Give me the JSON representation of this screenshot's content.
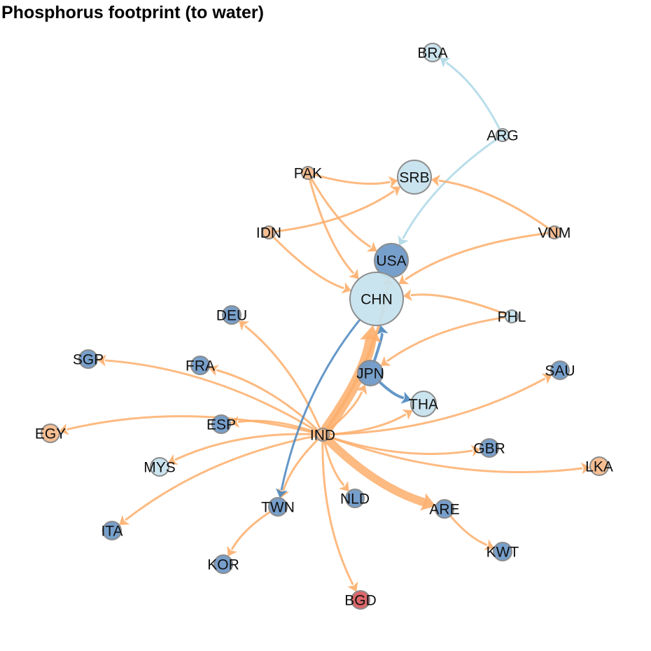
{
  "title": "Phosphorus footprint (to water)",
  "colors": {
    "orange": "#fdae6b",
    "light_blue": "#add8e6",
    "steel_blue": "#4a86be",
    "node_blue": "#6b97c7",
    "node_light": "#c6e2ee",
    "node_orange": "#f5b98a",
    "node_red": "#d9595c",
    "node_stroke": "#8c8c8c"
  },
  "nodes": [
    {
      "id": "BRA",
      "size": "s",
      "fill": "node_light"
    },
    {
      "id": "ARG",
      "size": "xs",
      "fill": "node_light"
    },
    {
      "id": "PAK",
      "size": "xs",
      "fill": "node_orange"
    },
    {
      "id": "SRB",
      "size": "l",
      "fill": "node_light"
    },
    {
      "id": "IDN",
      "size": "xs",
      "fill": "node_orange"
    },
    {
      "id": "VNM",
      "size": "xs",
      "fill": "node_orange"
    },
    {
      "id": "USA",
      "size": "l",
      "fill": "node_blue"
    },
    {
      "id": "CHN",
      "size": "xl",
      "fill": "node_light"
    },
    {
      "id": "DEU",
      "size": "s",
      "fill": "node_blue"
    },
    {
      "id": "PHL",
      "size": "xs",
      "fill": "node_light"
    },
    {
      "id": "SGP",
      "size": "s",
      "fill": "node_blue"
    },
    {
      "id": "FRA",
      "size": "s",
      "fill": "node_blue"
    },
    {
      "id": "JPN",
      "size": "m",
      "fill": "node_blue"
    },
    {
      "id": "SAU",
      "size": "s",
      "fill": "node_blue"
    },
    {
      "id": "THA",
      "size": "m",
      "fill": "node_light"
    },
    {
      "id": "ESP",
      "size": "s",
      "fill": "node_blue"
    },
    {
      "id": "EGY",
      "size": "s",
      "fill": "node_orange"
    },
    {
      "id": "IND",
      "size": "xs",
      "fill": "node_orange"
    },
    {
      "id": "GBR",
      "size": "s",
      "fill": "node_blue"
    },
    {
      "id": "MYS",
      "size": "s",
      "fill": "node_light"
    },
    {
      "id": "LKA",
      "size": "s",
      "fill": "node_orange"
    },
    {
      "id": "NLD",
      "size": "s",
      "fill": "node_blue"
    },
    {
      "id": "TWN",
      "size": "s",
      "fill": "node_blue"
    },
    {
      "id": "ARE",
      "size": "s",
      "fill": "node_blue"
    },
    {
      "id": "ITA",
      "size": "s",
      "fill": "node_blue"
    },
    {
      "id": "KWT",
      "size": "s",
      "fill": "node_blue"
    },
    {
      "id": "KOR",
      "size": "s",
      "fill": "node_blue"
    },
    {
      "id": "BGD",
      "size": "s",
      "fill": "node_red"
    }
  ],
  "edges": [
    {
      "from": "ARG",
      "to": "BRA",
      "color": "light_blue",
      "weight": 3
    },
    {
      "from": "ARG",
      "to": "USA",
      "color": "light_blue",
      "weight": 3
    },
    {
      "from": "PAK",
      "to": "SRB",
      "color": "orange",
      "weight": 3
    },
    {
      "from": "PAK",
      "to": "USA",
      "color": "orange",
      "weight": 3
    },
    {
      "from": "PAK",
      "to": "CHN",
      "color": "orange",
      "weight": 3
    },
    {
      "from": "IDN",
      "to": "SRB",
      "color": "orange",
      "weight": 3
    },
    {
      "from": "IDN",
      "to": "CHN",
      "color": "orange",
      "weight": 3
    },
    {
      "from": "VNM",
      "to": "SRB",
      "color": "orange",
      "weight": 3
    },
    {
      "from": "VNM",
      "to": "CHN",
      "color": "orange",
      "weight": 3
    },
    {
      "from": "PHL",
      "to": "CHN",
      "color": "orange",
      "weight": 3
    },
    {
      "from": "PHL",
      "to": "JPN",
      "color": "orange",
      "weight": 3
    },
    {
      "from": "JPN",
      "to": "CHN",
      "color": "steel_blue",
      "weight": 4
    },
    {
      "from": "JPN",
      "to": "THA",
      "color": "steel_blue",
      "weight": 4
    },
    {
      "from": "IND",
      "to": "CHN",
      "color": "orange",
      "weight": 16
    },
    {
      "from": "IND",
      "to": "USA",
      "color": "orange",
      "weight": 4
    },
    {
      "from": "IND",
      "to": "JPN",
      "color": "orange",
      "weight": 3
    },
    {
      "from": "IND",
      "to": "DEU",
      "color": "orange",
      "weight": 3
    },
    {
      "from": "IND",
      "to": "SGP",
      "color": "orange",
      "weight": 3
    },
    {
      "from": "IND",
      "to": "FRA",
      "color": "orange",
      "weight": 3
    },
    {
      "from": "IND",
      "to": "ESP",
      "color": "orange",
      "weight": 3
    },
    {
      "from": "IND",
      "to": "EGY",
      "color": "orange",
      "weight": 3
    },
    {
      "from": "IND",
      "to": "MYS",
      "color": "orange",
      "weight": 3
    },
    {
      "from": "IND",
      "to": "ITA",
      "color": "orange",
      "weight": 3
    },
    {
      "from": "IND",
      "to": "TWN",
      "color": "orange",
      "weight": 3
    },
    {
      "from": "IND",
      "to": "NLD",
      "color": "orange",
      "weight": 3
    },
    {
      "from": "IND",
      "to": "BGD",
      "color": "orange",
      "weight": 3
    },
    {
      "from": "IND",
      "to": "ARE",
      "color": "orange",
      "weight": 12
    },
    {
      "from": "IND",
      "to": "GBR",
      "color": "orange",
      "weight": 3
    },
    {
      "from": "IND",
      "to": "LKA",
      "color": "orange",
      "weight": 3
    },
    {
      "from": "IND",
      "to": "SAU",
      "color": "orange",
      "weight": 3
    },
    {
      "from": "IND",
      "to": "THA",
      "color": "orange",
      "weight": 3
    },
    {
      "from": "ARE",
      "to": "KWT",
      "color": "orange",
      "weight": 3
    },
    {
      "from": "TWN",
      "to": "KOR",
      "color": "orange",
      "weight": 3
    },
    {
      "from": "CHN",
      "to": "TWN",
      "color": "steel_blue",
      "weight": 3
    }
  ]
}
